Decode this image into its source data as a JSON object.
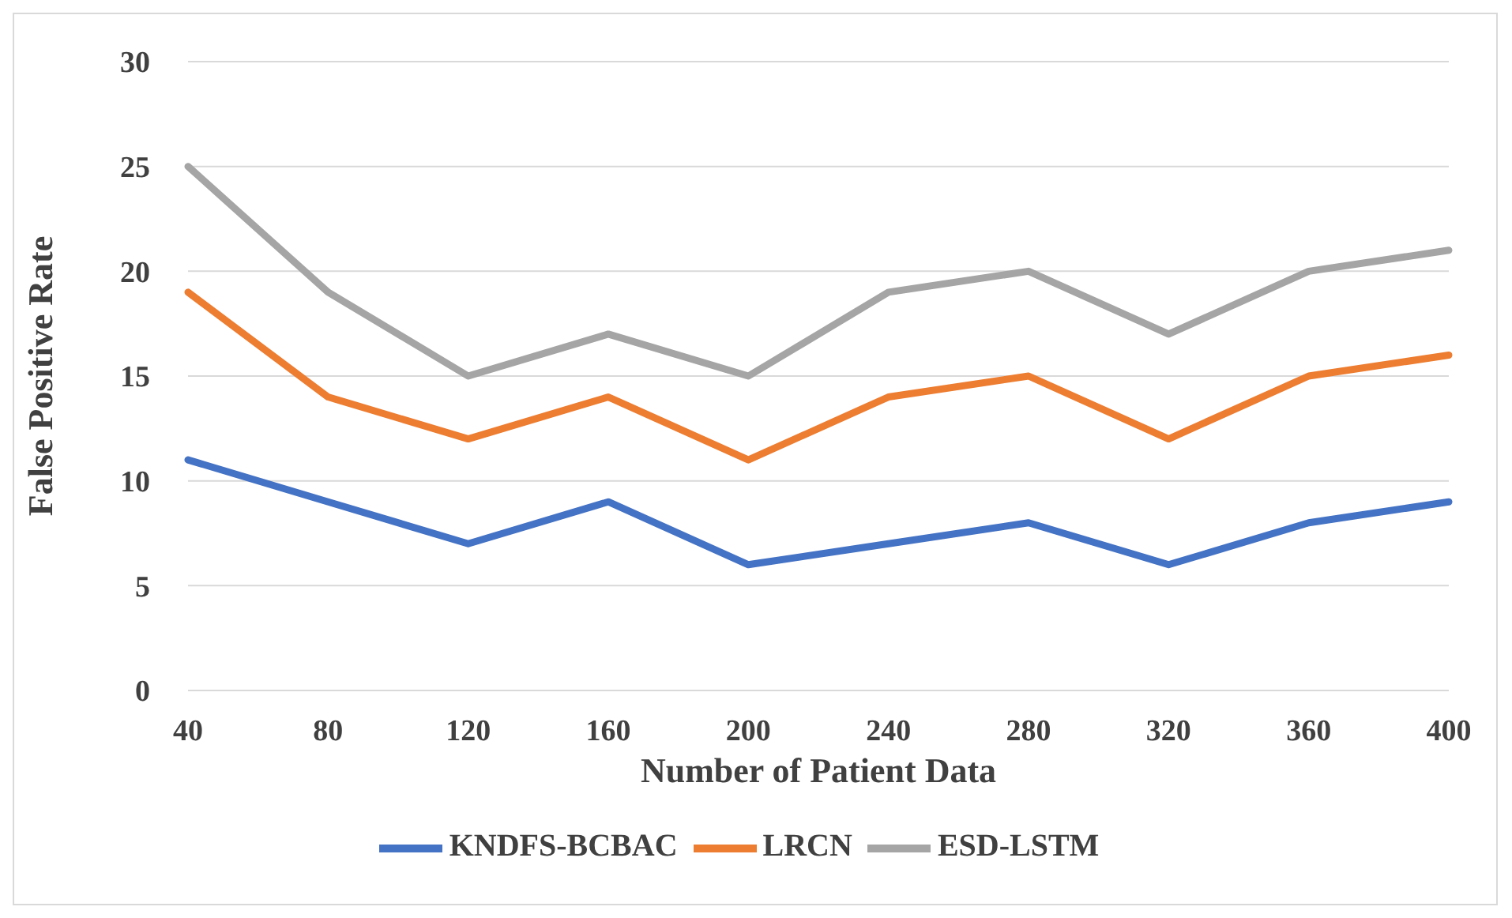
{
  "chart_data": {
    "type": "line",
    "xlabel": "Number of Patient Data",
    "ylabel": "False Positive Rate",
    "categories": [
      "40",
      "80",
      "120",
      "160",
      "200",
      "240",
      "280",
      "320",
      "360",
      "400"
    ],
    "series": [
      {
        "name": "KNDFS-BCBAC",
        "color": "#4472c4",
        "values": [
          11,
          9,
          7,
          9,
          6,
          7,
          8,
          6,
          8,
          9
        ]
      },
      {
        "name": "LRCN",
        "color": "#ed7d31",
        "values": [
          19,
          14,
          12,
          14,
          11,
          14,
          15,
          12,
          15,
          16
        ]
      },
      {
        "name": "ESD-LSTM",
        "color": "#a5a5a5",
        "values": [
          25,
          19,
          15,
          17,
          15,
          19,
          20,
          17,
          20,
          21
        ]
      }
    ],
    "ylim": [
      0,
      30
    ],
    "yticks": [
      0,
      5,
      10,
      15,
      20,
      25,
      30
    ],
    "grid": "y",
    "legend": "bottom",
    "marker": "none",
    "line_style": "solid"
  }
}
